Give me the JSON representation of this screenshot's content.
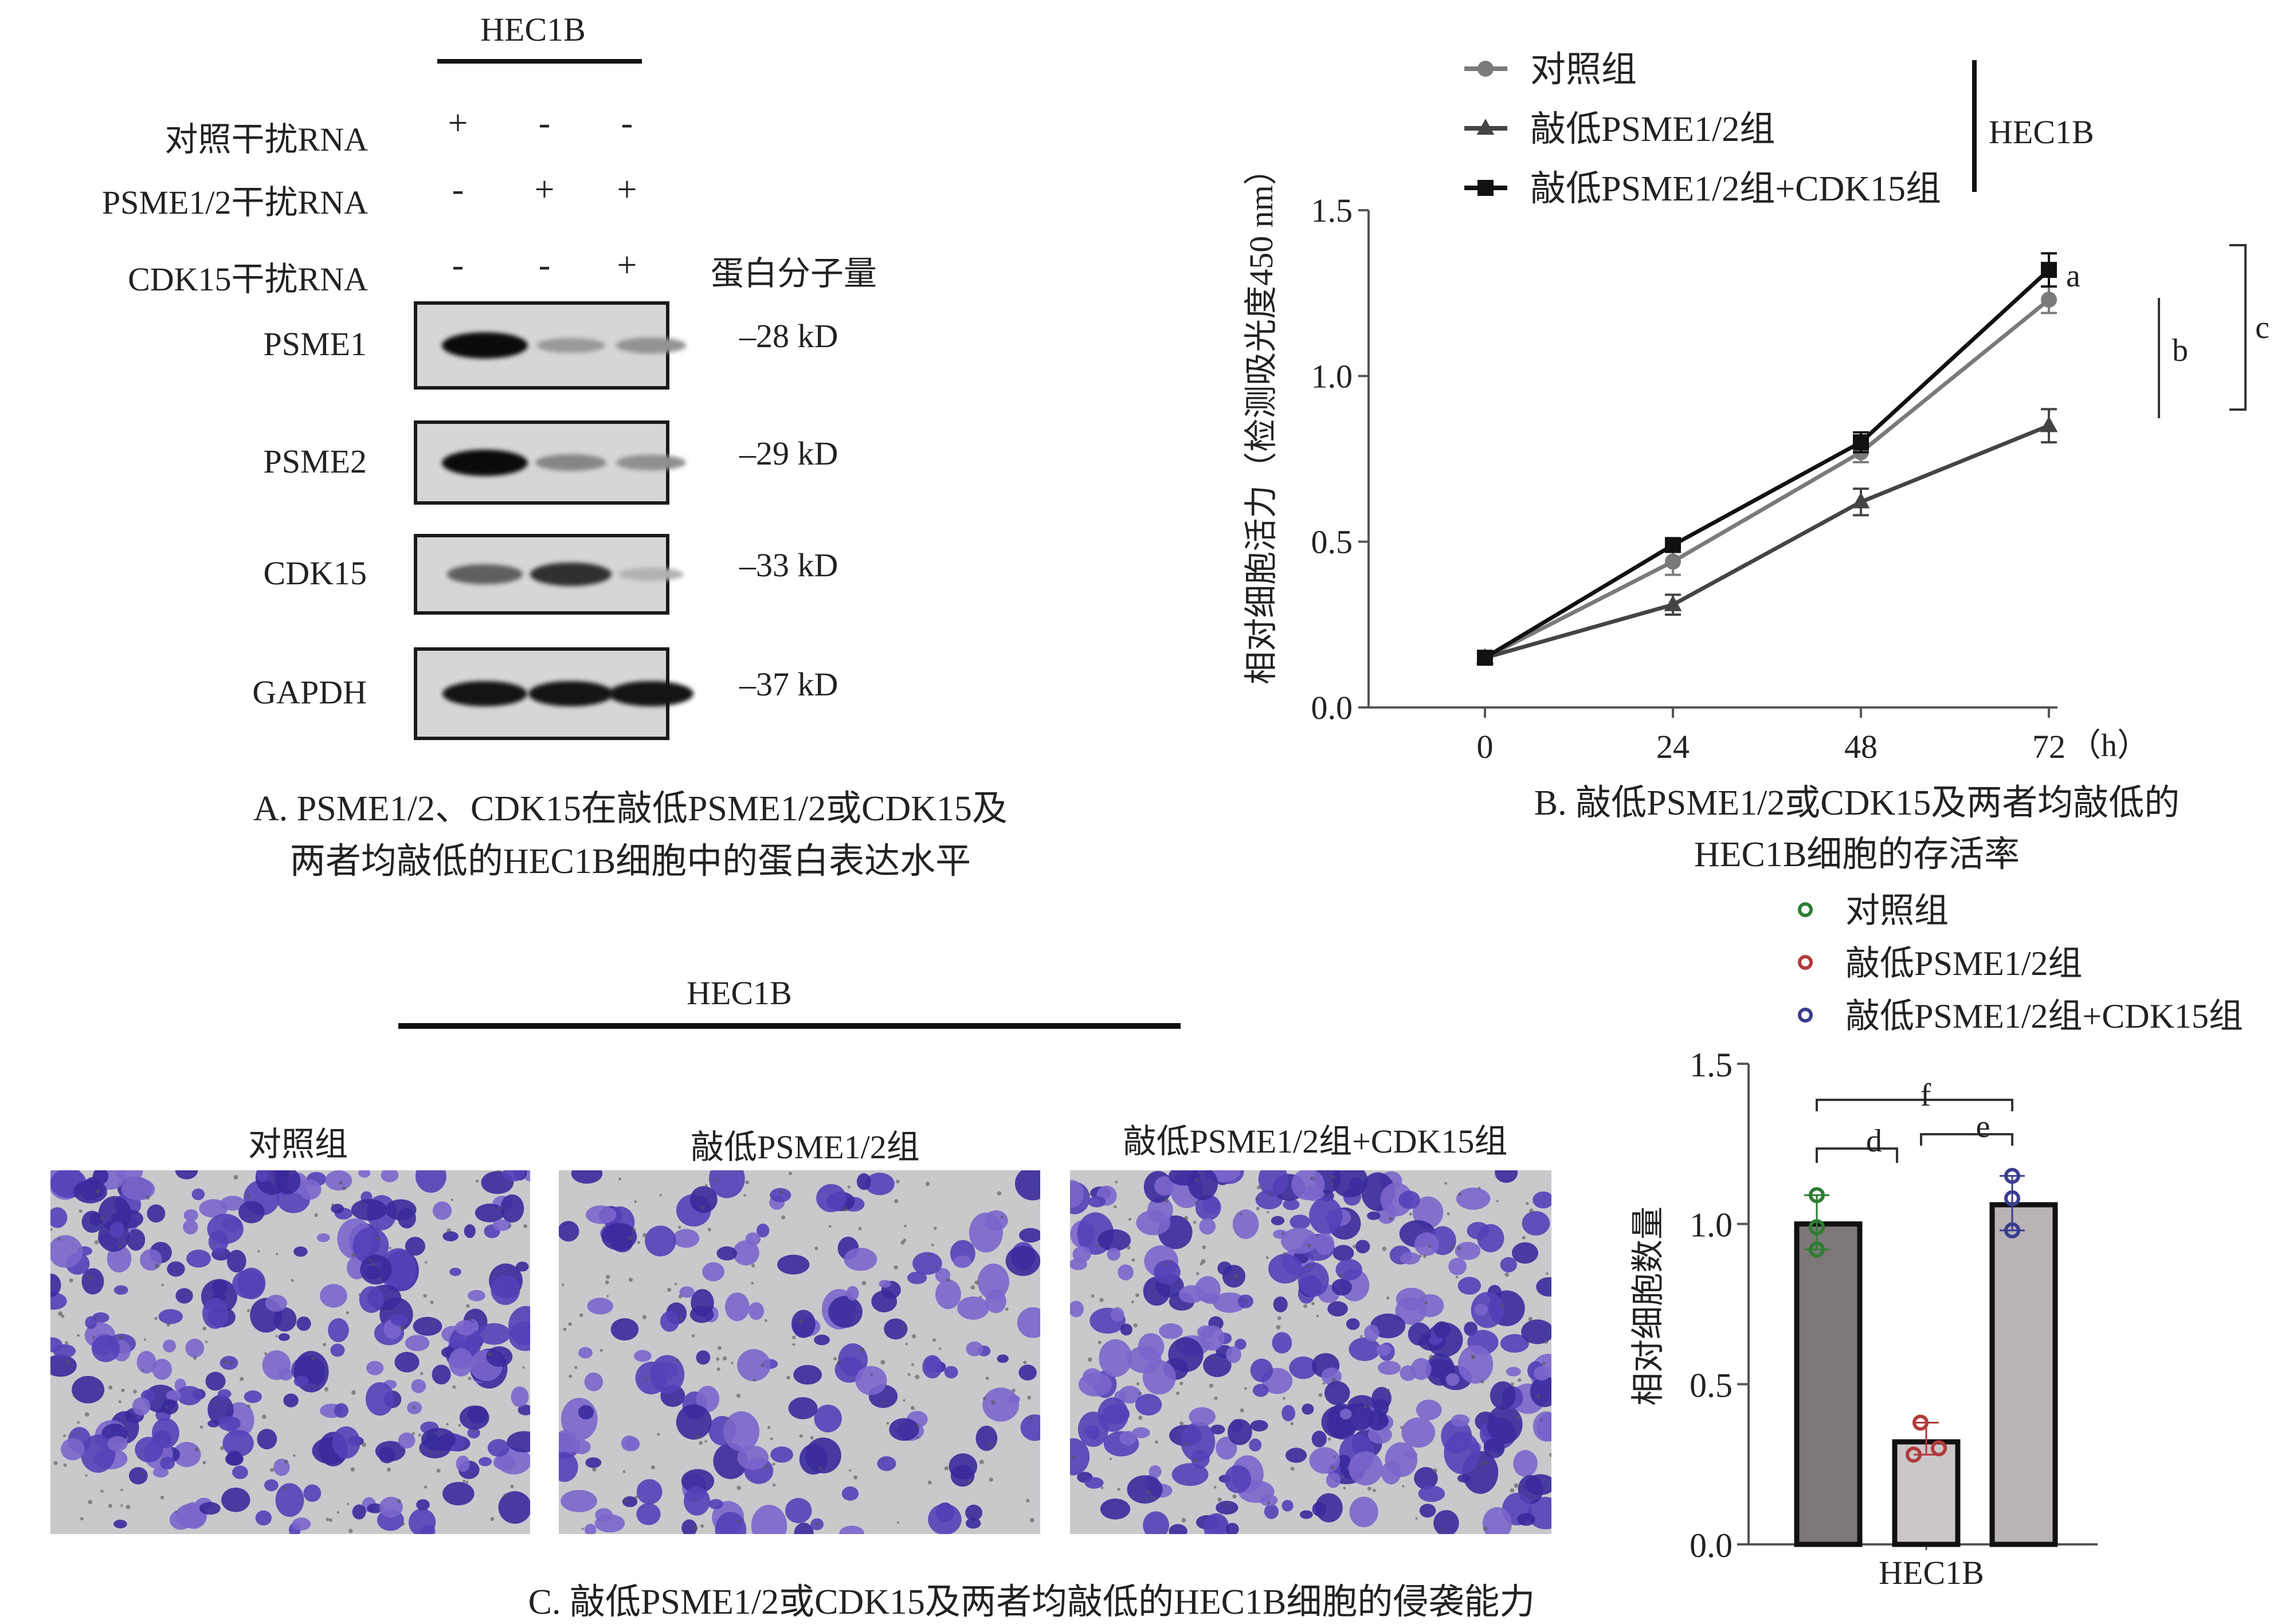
{
  "panelA": {
    "cell_line": "HEC1B",
    "rows": [
      {
        "label": "对照干扰RNA",
        "signs": [
          "+",
          "-",
          "-"
        ]
      },
      {
        "label": "PSME1/2干扰RNA",
        "signs": [
          "-",
          "+",
          "+"
        ]
      },
      {
        "label": "CDK15干扰RNA",
        "signs": [
          "-",
          "-",
          "+"
        ]
      }
    ],
    "mw_header": "蛋白分子量",
    "blots": [
      {
        "name": "PSME1",
        "mw": "–28 kD",
        "intensity": [
          1.0,
          0.25,
          0.28
        ]
      },
      {
        "name": "PSME2",
        "mw": "–29 kD",
        "intensity": [
          1.0,
          0.35,
          0.3
        ]
      },
      {
        "name": "CDK15",
        "mw": "–33 kD",
        "intensity": [
          0.55,
          0.8,
          0.12
        ]
      },
      {
        "name": "GAPDH",
        "mw": "–37 kD",
        "intensity": [
          0.95,
          0.95,
          0.95
        ]
      }
    ],
    "caption_line1": "A. PSME1/2、CDK15在敲低PSME1/2或CDK15及",
    "caption_line2": "两者均敲低的HEC1B细胞中的蛋白表达水平"
  },
  "panelC": {
    "cell_line": "HEC1B",
    "photo_labels": [
      "对照组",
      "敲低PSME1/2组",
      "敲低PSME1/2组+CDK15组"
    ],
    "caption": "C. 敲低PSME1/2或CDK15及两者均敲低的HEC1B细胞的侵袭能力"
  },
  "chart_data": [
    {
      "type": "line",
      "title": "",
      "caption_line1": "B. 敲低PSME1/2或CDK15及两者均敲低的",
      "caption_line2": "HEC1B细胞的存活率",
      "xlabel": "（h）",
      "ylabel": "相对细胞活力（检测吸光度450 nm）",
      "x": [
        0,
        24,
        48,
        72
      ],
      "x_tick_labels": [
        "0",
        "24",
        "48",
        "72"
      ],
      "ylim": [
        0,
        1.5
      ],
      "y_ticks": [
        0.0,
        0.5,
        1.0,
        1.5
      ],
      "y_tick_labels": [
        "0.0",
        "0.5",
        "1.0",
        "1.5"
      ],
      "legend_group_label": "HEC1B",
      "legend_position": "top",
      "series": [
        {
          "name": "对照组",
          "marker": "circle",
          "color": "#7a7a7a",
          "values": [
            0.15,
            0.44,
            0.77,
            1.23
          ],
          "errors": [
            0.01,
            0.04,
            0.03,
            0.04
          ]
        },
        {
          "name": "敲低PSME1/2组",
          "marker": "triangle",
          "color": "#444444",
          "values": [
            0.15,
            0.31,
            0.62,
            0.85
          ],
          "errors": [
            0.01,
            0.03,
            0.04,
            0.05
          ]
        },
        {
          "name": "敲低PSME1/2组+CDK15组",
          "marker": "square",
          "color": "#111111",
          "values": [
            0.15,
            0.49,
            0.8,
            1.32
          ],
          "errors": [
            0.01,
            0.01,
            0.03,
            0.05
          ]
        }
      ],
      "annotations": [
        "a",
        "b",
        "c"
      ]
    },
    {
      "type": "bar",
      "categories": [
        "HEC1B"
      ],
      "xlabel": "HEC1B",
      "ylabel": "相对细胞数量",
      "ylim": [
        0,
        1.5
      ],
      "y_ticks": [
        0.0,
        0.5,
        1.0,
        1.5
      ],
      "y_tick_labels": [
        "0.0",
        "0.5",
        "1.0",
        "1.5"
      ],
      "legend_position": "top",
      "series": [
        {
          "name": "对照组",
          "value": 1.0,
          "points": [
            1.09,
            0.99,
            0.92
          ],
          "fill": "#7d7779",
          "point_color": "#2e7d32"
        },
        {
          "name": "敲低PSME1/2组",
          "value": 0.32,
          "points": [
            0.38,
            0.28,
            0.3
          ],
          "fill": "#cbc7c8",
          "point_color": "#b23a3a"
        },
        {
          "name": "敲低PSME1/2组+CDK15组",
          "value": 1.06,
          "points": [
            1.15,
            1.08,
            0.98
          ],
          "fill": "#b8b3b5",
          "point_color": "#3b3b8f"
        }
      ],
      "annotations": [
        "d",
        "e",
        "f"
      ]
    }
  ]
}
